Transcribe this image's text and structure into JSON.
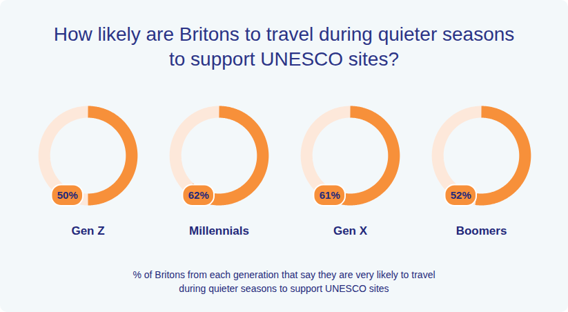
{
  "chart_data": {
    "type": "donut",
    "title": "How likely are Britons to travel during quieter seasons to support UNESCO sites?",
    "caption": "% of Britons from each generation that say they are very likely to travel during quieter seasons to support UNESCO sites",
    "categories": [
      "Gen Z",
      "Millennials",
      "Gen X",
      "Boomers"
    ],
    "values": [
      50,
      62,
      61,
      52
    ],
    "value_labels": [
      "50%",
      "62%",
      "61%",
      "52%"
    ],
    "data_labels": true,
    "color": "#f7903a",
    "ylim": [
      0,
      100
    ]
  }
}
